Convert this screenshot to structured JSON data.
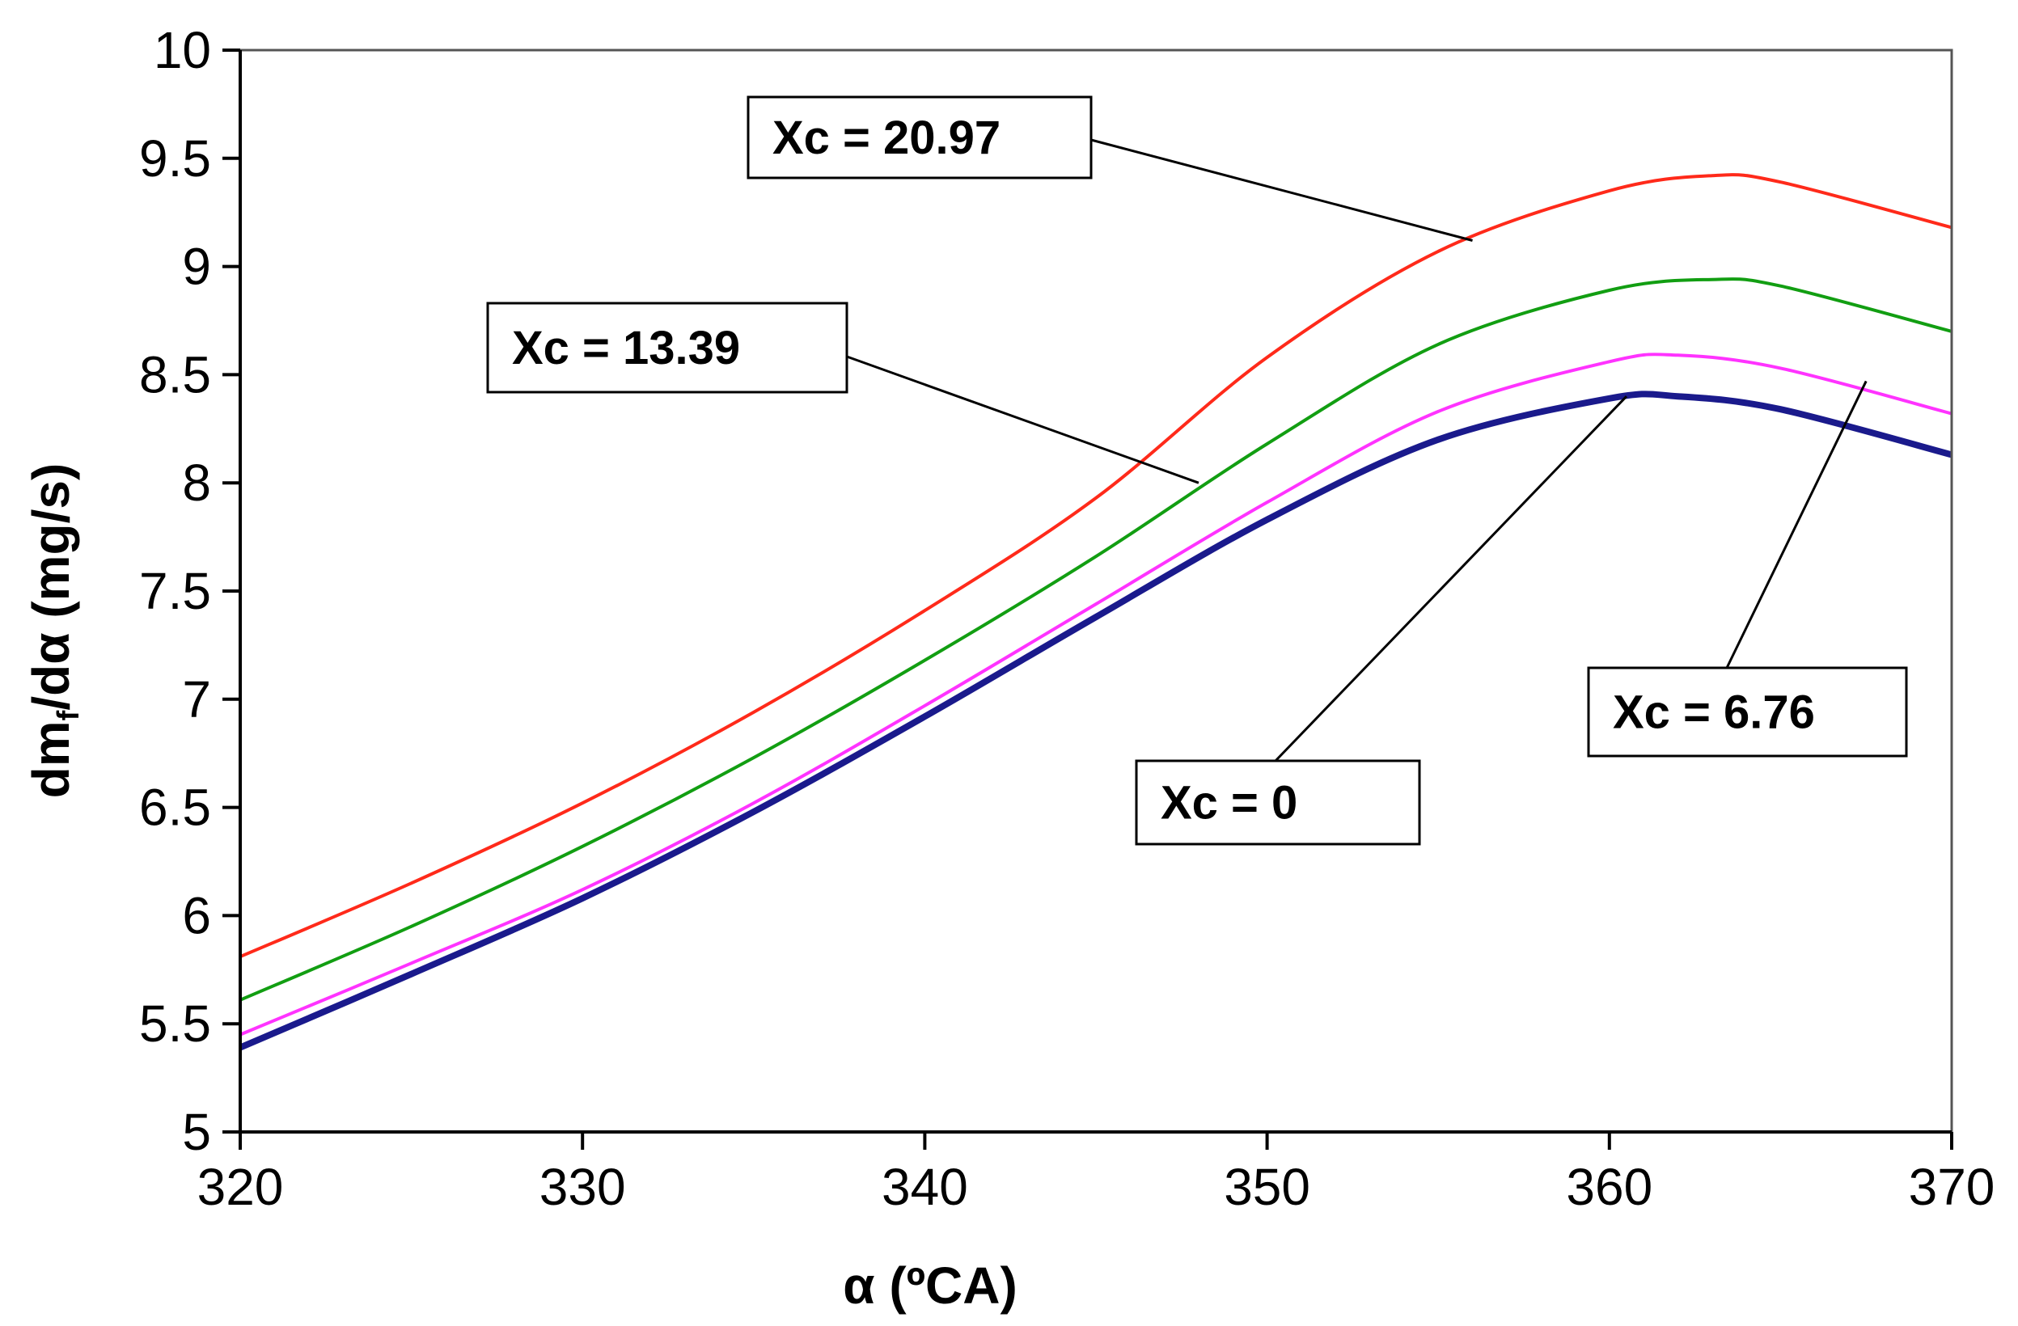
{
  "chart_data": {
    "type": "line",
    "title": "",
    "xlabel": "α (ºCA)",
    "ylabel": "dm",
    "ylabel_subscript": "f",
    "ylabel_suffix": "/dα  (mg/s)",
    "xlim": [
      320,
      370
    ],
    "ylim": [
      5,
      10
    ],
    "xticks": [
      "320",
      "330",
      "340",
      "350",
      "360",
      "370"
    ],
    "yticks": [
      "5",
      "5.5",
      "6",
      "6.5",
      "7",
      "7.5",
      "8",
      "8.5",
      "9",
      "9.5",
      "10"
    ],
    "grid": false,
    "series": [
      {
        "name": "Xc = 0",
        "color": "#1a1a8c",
        "x": [
          320,
          325,
          330,
          335,
          340,
          345,
          350,
          355,
          360,
          362,
          365,
          370
        ],
        "values": [
          5.39,
          5.73,
          6.08,
          6.48,
          6.92,
          7.38,
          7.83,
          8.2,
          8.39,
          8.4,
          8.34,
          8.13
        ]
      },
      {
        "name": "Xc = 6.76",
        "color": "#ff33ff",
        "x": [
          320,
          325,
          330,
          335,
          340,
          345,
          350,
          355,
          360,
          362,
          365,
          370
        ],
        "values": [
          5.45,
          5.78,
          6.12,
          6.52,
          6.97,
          7.44,
          7.91,
          8.33,
          8.56,
          8.59,
          8.53,
          8.32
        ]
      },
      {
        "name": "Xc = 13.39",
        "color": "#129e12",
        "x": [
          320,
          325,
          330,
          335,
          340,
          345,
          350,
          355,
          360,
          363,
          365,
          370
        ],
        "values": [
          5.61,
          5.95,
          6.32,
          6.73,
          7.18,
          7.66,
          8.18,
          8.64,
          8.89,
          8.94,
          8.91,
          8.7
        ]
      },
      {
        "name": "Xc = 20.97",
        "color": "#ff2a1a",
        "x": [
          320,
          325,
          330,
          335,
          340,
          345,
          350,
          355,
          360,
          363,
          365,
          370
        ],
        "values": [
          5.81,
          6.15,
          6.52,
          6.94,
          7.41,
          7.93,
          8.58,
          9.07,
          9.35,
          9.42,
          9.39,
          9.18
        ]
      }
    ],
    "annotations": [
      {
        "label": "Xc = 20.97",
        "series": "Xc = 20.97",
        "points_to": [
          356,
          9.12
        ]
      },
      {
        "label": "Xc = 13.39",
        "series": "Xc = 13.39",
        "points_to": [
          348,
          8.0
        ]
      },
      {
        "label": "Xc = 0",
        "series": "Xc = 0",
        "points_to": [
          360.5,
          8.4
        ]
      },
      {
        "label": "Xc = 6.76",
        "series": "Xc = 6.76",
        "points_to": [
          367.5,
          8.47
        ]
      }
    ]
  }
}
